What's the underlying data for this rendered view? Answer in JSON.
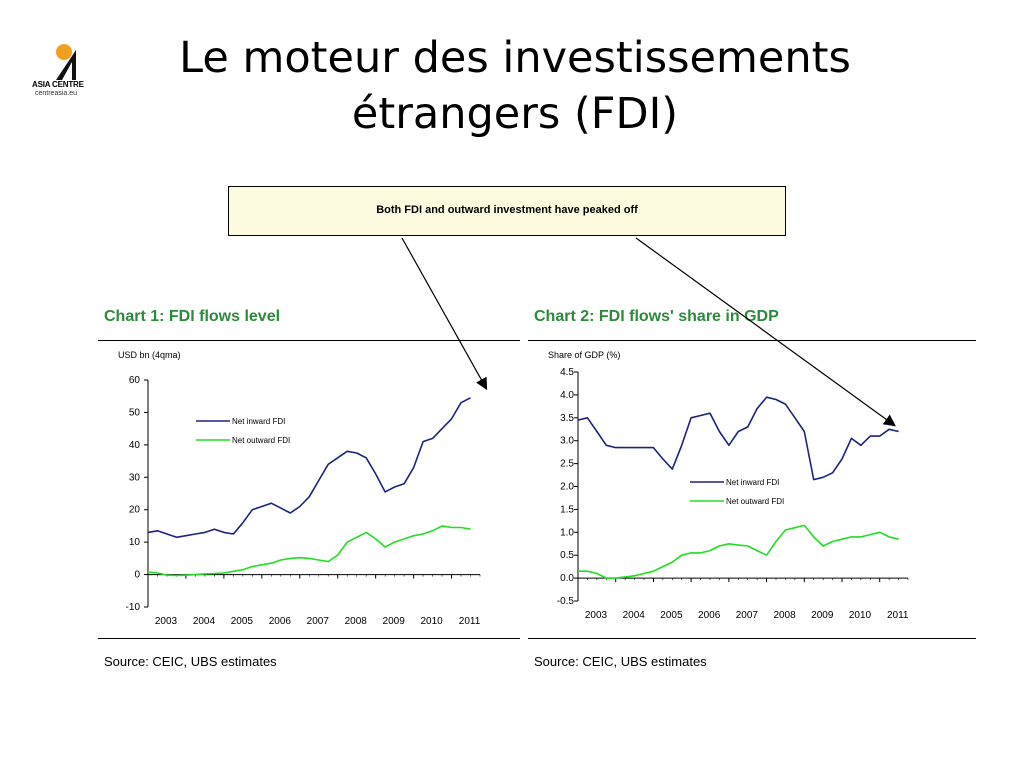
{
  "logo": {
    "name": "ASIA CENTRE",
    "url": "centreasia.eu"
  },
  "title": {
    "line1": "Le moteur des investissements",
    "line2": "étrangers (FDI)"
  },
  "callout": {
    "text": "Both FDI and outward investment have peaked off"
  },
  "charts": [
    {
      "heading": "Chart 1: FDI flows level",
      "source": "Source: CEIC, UBS estimates"
    },
    {
      "heading": "Chart 2: FDI flows' share in GDP",
      "source": "Source: CEIC, UBS estimates"
    }
  ],
  "colors": {
    "inward": "#1a237e",
    "outward": "#22dd22",
    "heading": "#2d8a3c",
    "callout_bg": "#fdfbdf"
  },
  "chart_data": [
    {
      "type": "line",
      "title": "Chart 1: FDI flows level",
      "ylabel": "USD bn (4qma)",
      "xlabel": "",
      "categories": [
        "2003",
        "2004",
        "2005",
        "2006",
        "2007",
        "2008",
        "2009",
        "2010",
        "2011"
      ],
      "ylim": [
        -10,
        60
      ],
      "yticks": [
        "60",
        "50",
        "40",
        "30",
        "20",
        "10",
        "0",
        "-10"
      ],
      "legend_position": "center-left",
      "series": [
        {
          "name": "Net inward FDI",
          "color": "#1a237e",
          "x": [
            2003,
            2003.25,
            2003.5,
            2003.75,
            2004,
            2004.25,
            2004.5,
            2004.75,
            2005,
            2005.25,
            2005.5,
            2005.75,
            2006,
            2006.25,
            2006.5,
            2006.75,
            2007,
            2007.25,
            2007.5,
            2007.75,
            2008,
            2008.25,
            2008.5,
            2008.75,
            2009,
            2009.25,
            2009.5,
            2009.75,
            2010,
            2010.25,
            2010.5,
            2010.75,
            2011,
            2011.25,
            2011.5
          ],
          "y": [
            13,
            13.5,
            12.5,
            11.5,
            12,
            12.5,
            13,
            14,
            13,
            12.5,
            16,
            20,
            21,
            22,
            20.5,
            19,
            21,
            24,
            29,
            34,
            36,
            38,
            37.5,
            36,
            31,
            25.5,
            27,
            28,
            33,
            41,
            42,
            45,
            48,
            53,
            54.5
          ]
        },
        {
          "name": "Net outward FDI",
          "color": "#22dd22",
          "x": [
            2003,
            2003.25,
            2003.5,
            2003.75,
            2004,
            2004.25,
            2004.5,
            2004.75,
            2005,
            2005.25,
            2005.5,
            2005.75,
            2006,
            2006.25,
            2006.5,
            2006.75,
            2007,
            2007.25,
            2007.5,
            2007.75,
            2008,
            2008.25,
            2008.5,
            2008.75,
            2009,
            2009.25,
            2009.5,
            2009.75,
            2010,
            2010.25,
            2010.5,
            2010.75,
            2011,
            2011.25,
            2011.5
          ],
          "y": [
            0.8,
            0.5,
            -0.2,
            -0.3,
            -0.2,
            0,
            0.2,
            0.3,
            0.5,
            1,
            1.5,
            2.5,
            3,
            3.5,
            4.5,
            5,
            5.2,
            5,
            4.5,
            4,
            6,
            10,
            11.5,
            13,
            11,
            8.5,
            10,
            11,
            12,
            12.5,
            13.5,
            15,
            14.5,
            14.5,
            14
          ]
        }
      ]
    },
    {
      "type": "line",
      "title": "Chart 2: FDI flows' share in GDP",
      "ylabel": "Share of GDP (%)",
      "xlabel": "",
      "categories": [
        "2003",
        "2004",
        "2005",
        "2006",
        "2007",
        "2008",
        "2009",
        "2010",
        "2011"
      ],
      "ylim": [
        -0.5,
        4.5
      ],
      "yticks": [
        "4.5",
        "4.0",
        "3.5",
        "3.0",
        "2.5",
        "2.0",
        "1.5",
        "1.0",
        "0.5",
        "0.0",
        "-0.5"
      ],
      "legend_position": "center",
      "series": [
        {
          "name": "Net inward FDI",
          "color": "#1a237e",
          "x": [
            2003,
            2003.25,
            2003.5,
            2003.75,
            2004,
            2004.5,
            2005,
            2005.25,
            2005.5,
            2005.75,
            2006,
            2006.25,
            2006.5,
            2006.75,
            2007,
            2007.25,
            2007.5,
            2007.75,
            2008,
            2008.25,
            2008.5,
            2008.75,
            2009,
            2009.25,
            2009.5,
            2009.75,
            2010,
            2010.25,
            2010.5,
            2010.75,
            2011,
            2011.25,
            2011.5
          ],
          "y": [
            3.45,
            3.5,
            3.2,
            2.9,
            2.85,
            2.85,
            2.85,
            2.6,
            2.38,
            2.9,
            3.5,
            3.55,
            3.6,
            3.2,
            2.9,
            3.2,
            3.3,
            3.7,
            3.95,
            3.9,
            3.8,
            3.5,
            3.2,
            2.15,
            2.2,
            2.3,
            2.6,
            3.05,
            2.9,
            3.1,
            3.1,
            3.25,
            3.2
          ]
        },
        {
          "name": "Net outward FDI",
          "color": "#22dd22",
          "x": [
            2003,
            2003.25,
            2003.5,
            2003.75,
            2004,
            2004.5,
            2005,
            2005.25,
            2005.5,
            2005.75,
            2006,
            2006.25,
            2006.5,
            2006.75,
            2007,
            2007.25,
            2007.5,
            2007.75,
            2008,
            2008.25,
            2008.5,
            2008.75,
            2009,
            2009.25,
            2009.5,
            2009.75,
            2010,
            2010.25,
            2010.5,
            2010.75,
            2011,
            2011.25,
            2011.5
          ],
          "y": [
            0.15,
            0.15,
            0.1,
            0.0,
            0.0,
            0.05,
            0.15,
            0.25,
            0.35,
            0.5,
            0.55,
            0.55,
            0.6,
            0.7,
            0.75,
            0.72,
            0.7,
            0.6,
            0.5,
            0.8,
            1.05,
            1.1,
            1.15,
            0.9,
            0.7,
            0.8,
            0.85,
            0.9,
            0.9,
            0.95,
            1.0,
            0.9,
            0.85
          ]
        }
      ]
    }
  ]
}
